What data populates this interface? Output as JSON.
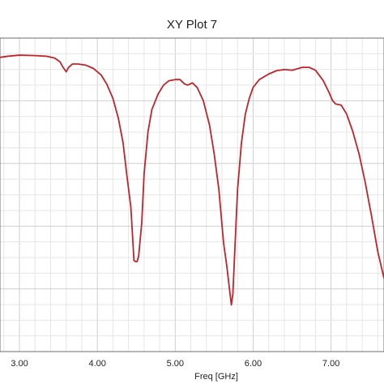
{
  "chart_data": {
    "type": "line",
    "title": "XY Plot 7",
    "xlabel": "Freq [GHz]",
    "ylabel": "",
    "x_ticks": [
      "3.00",
      "4.00",
      "5.00",
      "6.00",
      "7.00"
    ],
    "x_tick_values": [
      3.0,
      4.0,
      5.0,
      6.0,
      7.0
    ],
    "xlim": [
      2.75,
      7.68
    ],
    "grid": true,
    "series": [
      {
        "color": "#c0242a",
        "points": [
          [
            2.75,
            0.935
          ],
          [
            2.85,
            0.94
          ],
          [
            3.0,
            0.945
          ],
          [
            3.2,
            0.943
          ],
          [
            3.35,
            0.94
          ],
          [
            3.45,
            0.932
          ],
          [
            3.52,
            0.915
          ],
          [
            3.56,
            0.89
          ],
          [
            3.6,
            0.87
          ],
          [
            3.63,
            0.89
          ],
          [
            3.68,
            0.905
          ],
          [
            3.75,
            0.905
          ],
          [
            3.85,
            0.9
          ],
          [
            3.95,
            0.885
          ],
          [
            4.05,
            0.855
          ],
          [
            4.12,
            0.815
          ],
          [
            4.2,
            0.75
          ],
          [
            4.27,
            0.66
          ],
          [
            4.33,
            0.55
          ],
          [
            4.38,
            0.4
          ],
          [
            4.43,
            0.26
          ],
          [
            4.47,
            0.02
          ],
          [
            4.49,
            0.015
          ],
          [
            4.51,
            0.015
          ],
          [
            4.53,
            0.04
          ],
          [
            4.57,
            0.19
          ],
          [
            4.6,
            0.41
          ],
          [
            4.65,
            0.6
          ],
          [
            4.7,
            0.7
          ],
          [
            4.78,
            0.77
          ],
          [
            4.85,
            0.81
          ],
          [
            4.92,
            0.83
          ],
          [
            5.0,
            0.835
          ],
          [
            5.06,
            0.835
          ],
          [
            5.12,
            0.815
          ],
          [
            5.16,
            0.81
          ],
          [
            5.22,
            0.82
          ],
          [
            5.28,
            0.8
          ],
          [
            5.36,
            0.74
          ],
          [
            5.44,
            0.63
          ],
          [
            5.5,
            0.5
          ],
          [
            5.56,
            0.34
          ],
          [
            5.62,
            0.1
          ],
          [
            5.66,
            0.0
          ],
          [
            5.72,
            -0.18
          ],
          [
            5.74,
            -0.13
          ],
          [
            5.76,
            0.03
          ],
          [
            5.8,
            0.34
          ],
          [
            5.85,
            0.55
          ],
          [
            5.9,
            0.68
          ],
          [
            5.95,
            0.75
          ],
          [
            6.0,
            0.8
          ],
          [
            6.08,
            0.835
          ],
          [
            6.2,
            0.86
          ],
          [
            6.3,
            0.875
          ],
          [
            6.4,
            0.88
          ],
          [
            6.5,
            0.877
          ],
          [
            6.55,
            0.882
          ],
          [
            6.63,
            0.89
          ],
          [
            6.72,
            0.89
          ],
          [
            6.8,
            0.877
          ],
          [
            6.9,
            0.83
          ],
          [
            6.97,
            0.78
          ],
          [
            7.02,
            0.74
          ],
          [
            7.06,
            0.725
          ],
          [
            7.13,
            0.72
          ],
          [
            7.2,
            0.68
          ],
          [
            7.28,
            0.6
          ],
          [
            7.36,
            0.5
          ],
          [
            7.44,
            0.37
          ],
          [
            7.52,
            0.22
          ],
          [
            7.6,
            0.06
          ],
          [
            7.68,
            -0.06
          ]
        ]
      }
    ]
  }
}
